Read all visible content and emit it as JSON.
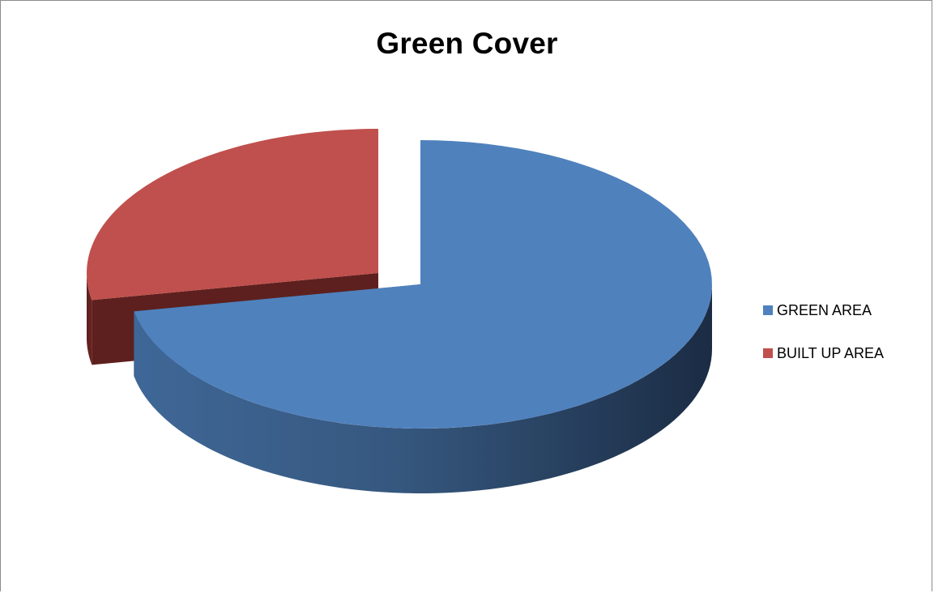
{
  "chart_data": {
    "type": "pie",
    "title": "Green Cover",
    "categories": [
      "GREEN AREA",
      "BUILT UP AREA"
    ],
    "values": [
      72,
      28
    ],
    "colors": [
      "#4f81bd",
      "#c0504d"
    ],
    "legend_position": "right",
    "exploded": true,
    "three_d": true
  }
}
